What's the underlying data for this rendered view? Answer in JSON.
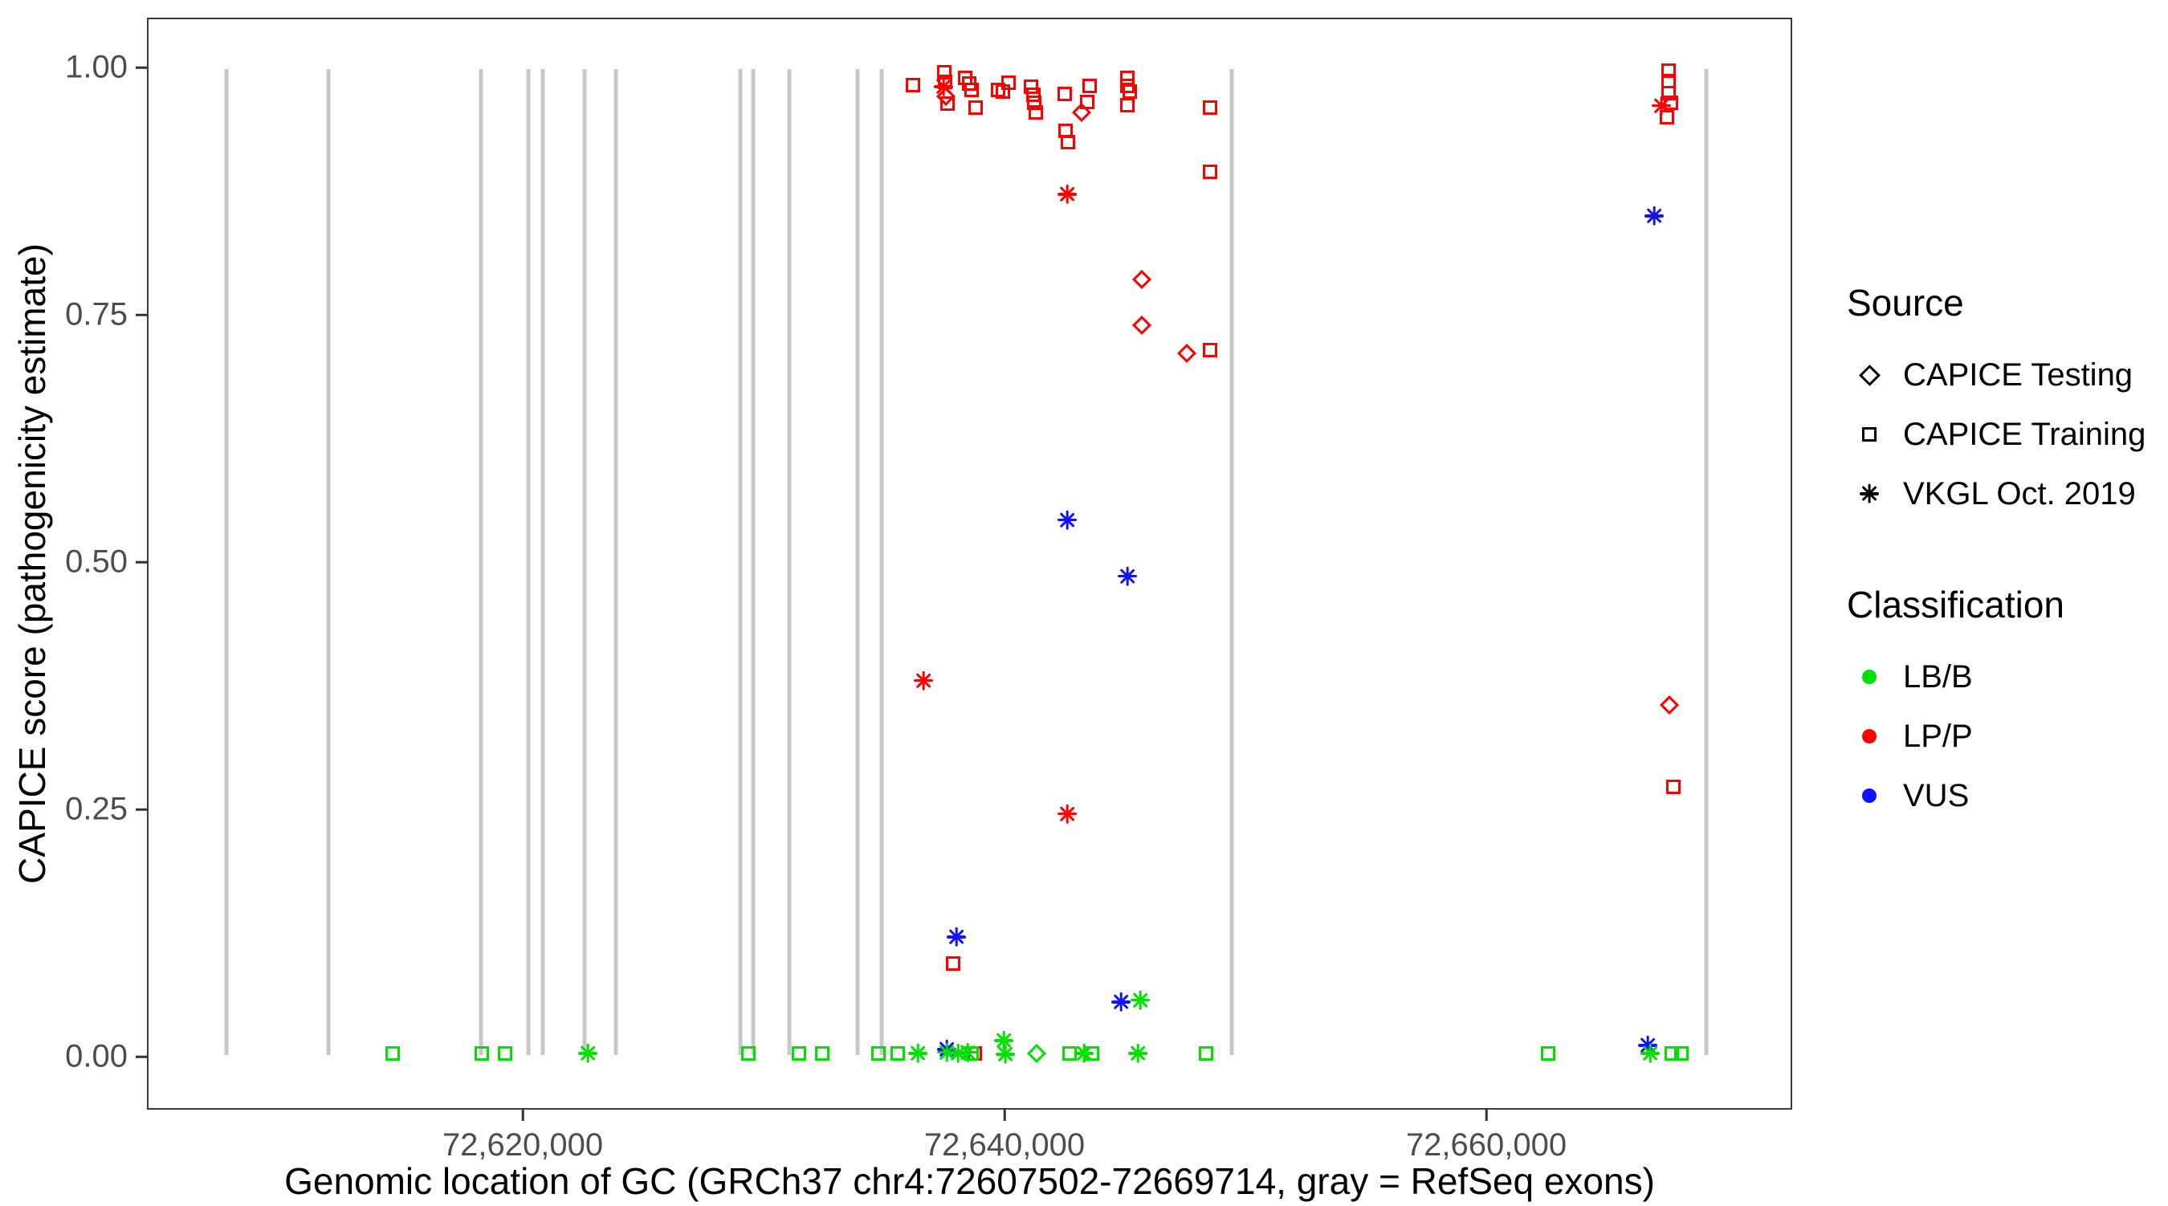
{
  "figure": {
    "xlabel": "Genomic location of GC (GRCh37 chr4:72607502-72669714, gray = RefSeq exons)",
    "ylabel": "CAPICE score (pathogenicity estimate)"
  },
  "legend": {
    "source": {
      "title": "Source",
      "items": [
        {
          "label": "CAPICE Testing",
          "marker": "diamond-outline"
        },
        {
          "label": "CAPICE Training",
          "marker": "square-outline"
        },
        {
          "label": "VKGL Oct. 2019",
          "marker": "asterisk"
        }
      ]
    },
    "classification": {
      "title": "Classification",
      "items": [
        {
          "label": "LB/B",
          "color": "#00e100"
        },
        {
          "label": "LP/P",
          "color": "#fe0000"
        },
        {
          "label": "VUS",
          "color": "#1212ff"
        }
      ]
    }
  },
  "chart_data": {
    "type": "scatter",
    "title": "",
    "xlabel": "Genomic location of GC (GRCh37 chr4:72607502-72669714, gray = RefSeq exons)",
    "ylabel": "CAPICE score (pathogenicity estimate)",
    "x_domain": [
      72604400,
      72672700
    ],
    "y_domain": [
      -0.0535,
      1.0505
    ],
    "x_ticks": [
      {
        "value": 72620000,
        "label": "72,620,000"
      },
      {
        "value": 72640000,
        "label": "72,640,000"
      },
      {
        "value": 72660000,
        "label": "72,660,000"
      }
    ],
    "y_ticks": [
      {
        "value": 0.0,
        "label": "0.00"
      },
      {
        "value": 0.25,
        "label": "0.25"
      },
      {
        "value": 0.5,
        "label": "0.50"
      },
      {
        "value": 0.75,
        "label": "0.75"
      },
      {
        "value": 1.0,
        "label": "1.00"
      }
    ],
    "grid": "off",
    "legend_position": "right",
    "colors": {
      "LBB": "#00e100",
      "LPP": "#fe0000",
      "VUS": "#1212ff"
    },
    "exon_color": "#c8c8c8",
    "exon_score_span": [
      0,
      1
    ],
    "exons_bp": [
      72607642,
      72611872,
      72618234,
      72620200,
      72620800,
      72622532,
      72623831,
      72629027,
      72629560,
      72631059,
      72633890,
      72634890,
      72649446,
      72669200
    ],
    "shape_legend": {
      "d": "CAPICE Testing",
      "s": "CAPICE Training",
      "a": "VKGL Oct. 2019"
    },
    "point_format": [
      "genomic_position_bp",
      "capice_score",
      "shape(s=square,d=diamond,a=asterisk)",
      "classification"
    ],
    "points": [
      [
        72636189,
        0.984,
        "s",
        "LPP"
      ],
      [
        72637500,
        0.997,
        "s",
        "LPP"
      ],
      [
        72637520,
        0.987,
        "s",
        "LPP"
      ],
      [
        72637450,
        0.982,
        "a",
        "LPP"
      ],
      [
        72637560,
        0.972,
        "d",
        "LPP"
      ],
      [
        72637620,
        0.965,
        "s",
        "LPP"
      ],
      [
        72638354,
        0.991,
        "s",
        "LPP"
      ],
      [
        72638520,
        0.985,
        "s",
        "LPP"
      ],
      [
        72638650,
        0.979,
        "s",
        "LPP"
      ],
      [
        72638800,
        0.961,
        "s",
        "LPP"
      ],
      [
        72639719,
        0.979,
        "s",
        "LPP"
      ],
      [
        72639950,
        0.977,
        "s",
        "LPP"
      ],
      [
        72640185,
        0.986,
        "s",
        "LPP"
      ],
      [
        72641118,
        0.982,
        "s",
        "LPP"
      ],
      [
        72641218,
        0.974,
        "s",
        "LPP"
      ],
      [
        72641250,
        0.966,
        "s",
        "LPP"
      ],
      [
        72641300,
        0.956,
        "s",
        "LPP"
      ],
      [
        72642518,
        0.975,
        "s",
        "LPP"
      ],
      [
        72643217,
        0.956,
        "d",
        "LPP"
      ],
      [
        72643450,
        0.967,
        "s",
        "LPP"
      ],
      [
        72643550,
        0.983,
        "s",
        "LPP"
      ],
      [
        72645116,
        0.991,
        "s",
        "LPP"
      ],
      [
        72645116,
        0.983,
        "s",
        "LPP"
      ],
      [
        72645200,
        0.977,
        "s",
        "LPP"
      ],
      [
        72645116,
        0.963,
        "s",
        "LPP"
      ],
      [
        72642551,
        0.937,
        "s",
        "LPP"
      ],
      [
        72642651,
        0.926,
        "s",
        "LPP"
      ],
      [
        72642618,
        0.873,
        "a",
        "LPP"
      ],
      [
        72648547,
        0.961,
        "s",
        "LPP"
      ],
      [
        72648547,
        0.896,
        "s",
        "LPP"
      ],
      [
        72645716,
        0.787,
        "d",
        "LPP"
      ],
      [
        72645716,
        0.74,
        "d",
        "LPP"
      ],
      [
        72647581,
        0.712,
        "d",
        "LPP"
      ],
      [
        72648547,
        0.715,
        "s",
        "LPP"
      ],
      [
        72636622,
        0.38,
        "a",
        "LPP"
      ],
      [
        72642618,
        0.245,
        "a",
        "LPP"
      ],
      [
        72637854,
        0.093,
        "s",
        "LPP"
      ],
      [
        72667630,
        0.998,
        "s",
        "LPP"
      ],
      [
        72667630,
        0.988,
        "s",
        "LPP"
      ],
      [
        72667630,
        0.976,
        "s",
        "LPP"
      ],
      [
        72667730,
        0.966,
        "s",
        "LPP"
      ],
      [
        72667330,
        0.963,
        "a",
        "LPP"
      ],
      [
        72667560,
        0.951,
        "s",
        "LPP"
      ],
      [
        72667663,
        0.355,
        "d",
        "LPP"
      ],
      [
        72667830,
        0.272,
        "s",
        "LPP"
      ],
      [
        72667030,
        0.851,
        "a",
        "VUS"
      ],
      [
        72642618,
        0.543,
        "a",
        "VUS"
      ],
      [
        72645116,
        0.486,
        "a",
        "VUS"
      ],
      [
        72637987,
        0.12,
        "a",
        "VUS"
      ],
      [
        72644850,
        0.054,
        "a",
        "VUS"
      ],
      [
        72637588,
        0.006,
        "a",
        "VUS"
      ],
      [
        72666764,
        0.01,
        "a",
        "VUS"
      ],
      [
        72638760,
        0.002,
        "s",
        "LPP"
      ],
      [
        72614545,
        0.002,
        "s",
        "LBB"
      ],
      [
        72618268,
        0.002,
        "s",
        "LBB"
      ],
      [
        72619234,
        0.002,
        "s",
        "LBB"
      ],
      [
        72622665,
        0.002,
        "a",
        "LBB"
      ],
      [
        72629360,
        0.002,
        "s",
        "LBB"
      ],
      [
        72631459,
        0.002,
        "s",
        "LBB"
      ],
      [
        72632425,
        0.002,
        "s",
        "LBB"
      ],
      [
        72634760,
        0.002,
        "s",
        "LBB"
      ],
      [
        72635560,
        0.002,
        "s",
        "LBB"
      ],
      [
        72636389,
        0.002,
        "a",
        "LBB"
      ],
      [
        72637588,
        0.003,
        "a",
        "LBB"
      ],
      [
        72638054,
        0.002,
        "a",
        "LBB"
      ],
      [
        72638454,
        0.003,
        "a",
        "LBB"
      ],
      [
        72638620,
        0.002,
        "s",
        "LBB"
      ],
      [
        72639986,
        0.015,
        "a",
        "LBB"
      ],
      [
        72640050,
        0.001,
        "a",
        "LBB"
      ],
      [
        72641351,
        0.002,
        "d",
        "LBB"
      ],
      [
        72642717,
        0.002,
        "s",
        "LBB"
      ],
      [
        72643317,
        0.002,
        "a",
        "LBB"
      ],
      [
        72643650,
        0.002,
        "s",
        "LBB"
      ],
      [
        72645650,
        0.056,
        "a",
        "LBB"
      ],
      [
        72645550,
        0.002,
        "a",
        "LBB"
      ],
      [
        72648380,
        0.002,
        "s",
        "LBB"
      ],
      [
        72662600,
        0.002,
        "s",
        "LBB"
      ],
      [
        72666864,
        0.002,
        "a",
        "LBB"
      ],
      [
        72667763,
        0.002,
        "s",
        "LBB"
      ],
      [
        72668170,
        0.002,
        "s",
        "LBB"
      ]
    ]
  }
}
